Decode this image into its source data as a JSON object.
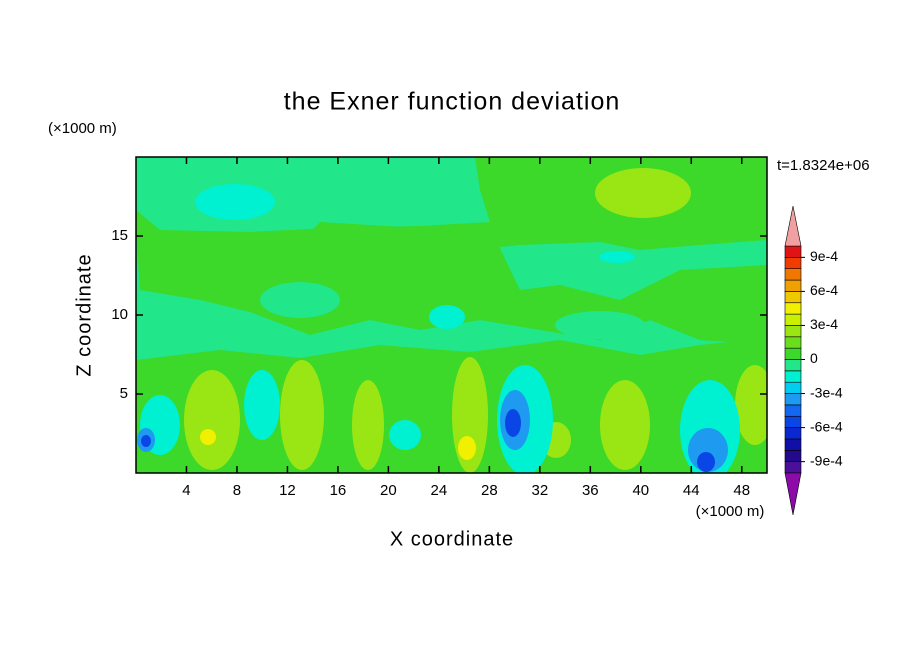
{
  "chart_data": {
    "type": "contour",
    "title": "the Exner function deviation",
    "x_label": "X coordinate",
    "y_label": "Z coordinate",
    "x_unit": "(×1000 m)",
    "y_unit": "(×1000 m)",
    "annotation": "t=1.8324e+06",
    "xlim": [
      0,
      50
    ],
    "ylim": [
      0,
      20
    ],
    "xticks": [
      4,
      8,
      12,
      16,
      20,
      24,
      28,
      32,
      36,
      40,
      44,
      48
    ],
    "yticks": [
      5,
      10,
      15
    ],
    "colorbar": {
      "levels": [
        -0.001,
        -0.0009,
        -0.0008,
        -0.0007,
        -0.0006,
        -0.0005,
        -0.0004,
        -0.0003,
        -0.0002,
        -0.0001,
        0,
        0.0001,
        0.0002,
        0.0003,
        0.0004,
        0.0005,
        0.0006,
        0.0007,
        0.0008,
        0.0009,
        0.001
      ],
      "colors": [
        "#4b0f9a",
        "#230a8c",
        "#1010a8",
        "#0a28d2",
        "#0a46e6",
        "#1468f0",
        "#1e9af0",
        "#00cdf0",
        "#00f0d2",
        "#22e68a",
        "#3cd82a",
        "#6ade1e",
        "#9ae614",
        "#c8f000",
        "#f0f000",
        "#f0c800",
        "#f0a000",
        "#f07800",
        "#f03c00",
        "#e01414"
      ],
      "under_color": "#8c0aa8",
      "over_color": "#f0a0a0",
      "ticks": [
        {
          "value": 0.0009,
          "label": "9e-4"
        },
        {
          "value": 0.0006,
          "label": "6e-4"
        },
        {
          "value": 0.0003,
          "label": "3e-4"
        },
        0,
        {
          "value": -0.0003,
          "label": "-3e-4"
        },
        {
          "value": -0.0006,
          "label": "-6e-4"
        },
        {
          "value": -0.0009,
          "label": "-9e-4"
        }
      ]
    }
  }
}
